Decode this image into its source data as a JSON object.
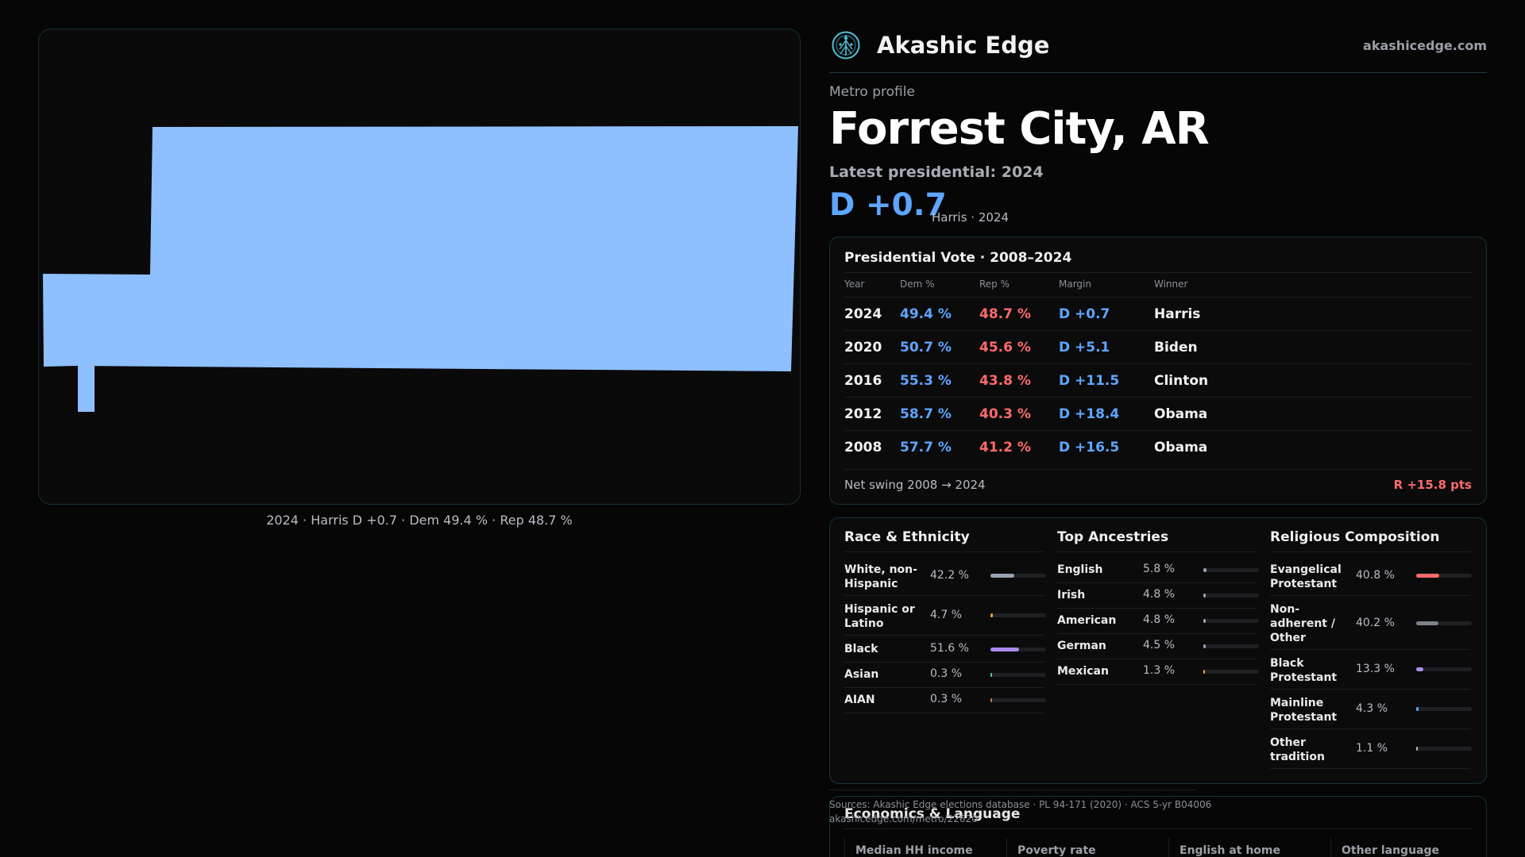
{
  "map": {
    "caption": "2024 · Harris D +0.7 · Dem 49.4 % · Rep 48.7 %",
    "fill_color": "#8ebfff"
  },
  "brand": {
    "name": "Akashic Edge",
    "site": "akashicedge.com",
    "logo_icon": "tree-of-life-icon"
  },
  "profile": {
    "label": "Metro profile",
    "title": "Forrest City, AR",
    "latest_label": "Latest presidential: 2024",
    "margin": "D +0.7",
    "margin_sub": "Harris · 2024"
  },
  "vote": {
    "title": "Presidential Vote · 2008–2024",
    "headers": [
      "Year",
      "Dem %",
      "Rep %",
      "Margin",
      "Winner"
    ],
    "rows": [
      {
        "year": "2024",
        "dem": "49.4 %",
        "rep": "48.7 %",
        "margin": "D +0.7",
        "winner": "Harris"
      },
      {
        "year": "2020",
        "dem": "50.7 %",
        "rep": "45.6 %",
        "margin": "D +5.1",
        "winner": "Biden"
      },
      {
        "year": "2016",
        "dem": "55.3 %",
        "rep": "43.8 %",
        "margin": "D +11.5",
        "winner": "Clinton"
      },
      {
        "year": "2012",
        "dem": "58.7 %",
        "rep": "40.3 %",
        "margin": "D +18.4",
        "winner": "Obama"
      },
      {
        "year": "2008",
        "dem": "57.7 %",
        "rep": "41.2 %",
        "margin": "D +16.5",
        "winner": "Obama"
      }
    ],
    "swing_label": "Net swing 2008 → 2024",
    "swing_value": "R +15.8 pts"
  },
  "demographics": {
    "race": {
      "title": "Race & Ethnicity",
      "items": [
        {
          "label": "White, non-Hispanic",
          "value": "42.2 %",
          "share": 0.422,
          "color": "#9aa3b2"
        },
        {
          "label": "Hispanic or Latino",
          "value": "4.7 %",
          "share": 0.047,
          "color": "#f0a030"
        },
        {
          "label": "Black",
          "value": "51.6 %",
          "share": 0.516,
          "color": "#a98cf0"
        },
        {
          "label": "Asian",
          "value": "0.3 %",
          "share": 0.003,
          "color": "#5ec8b0"
        },
        {
          "label": "AIAN",
          "value": "0.3 %",
          "share": 0.003,
          "color": "#c87a5e"
        }
      ]
    },
    "ancestry": {
      "title": "Top Ancestries",
      "items": [
        {
          "label": "English",
          "value": "5.8 %",
          "share": 0.058,
          "color": "#9aa3b2"
        },
        {
          "label": "Irish",
          "value": "4.8 %",
          "share": 0.048,
          "color": "#9aa3b2"
        },
        {
          "label": "American",
          "value": "4.8 %",
          "share": 0.048,
          "color": "#9aa3b2"
        },
        {
          "label": "German",
          "value": "4.5 %",
          "share": 0.045,
          "color": "#9aa3b2"
        },
        {
          "label": "Mexican",
          "value": "1.3 %",
          "share": 0.013,
          "color": "#f0a030"
        }
      ]
    },
    "religion": {
      "title": "Religious Composition",
      "items": [
        {
          "label": "Evangelical Protestant",
          "value": "40.8 %",
          "share": 0.408,
          "color": "#ff6b6b"
        },
        {
          "label": "Non-adherent / Other",
          "value": "40.2 %",
          "share": 0.402,
          "color": "#7d828c"
        },
        {
          "label": "Black Protestant",
          "value": "13.3 %",
          "share": 0.133,
          "color": "#a98cf0"
        },
        {
          "label": "Mainline Protestant",
          "value": "4.3 %",
          "share": 0.043,
          "color": "#5ea6ff"
        },
        {
          "label": "Other tradition",
          "value": "1.1 %",
          "share": 0.011,
          "color": "#b8bcc4"
        }
      ]
    }
  },
  "sources": {
    "line1": "Sources: Akashic Edge elections database · PL 94-171 (2020) · ACS 5-yr B04006",
    "line2": "akashicedge.com/metro/22620"
  },
  "economics": {
    "title": "Economics & Language",
    "headers": [
      "Median HH income",
      "Poverty rate",
      "English at home",
      "Other language"
    ]
  }
}
